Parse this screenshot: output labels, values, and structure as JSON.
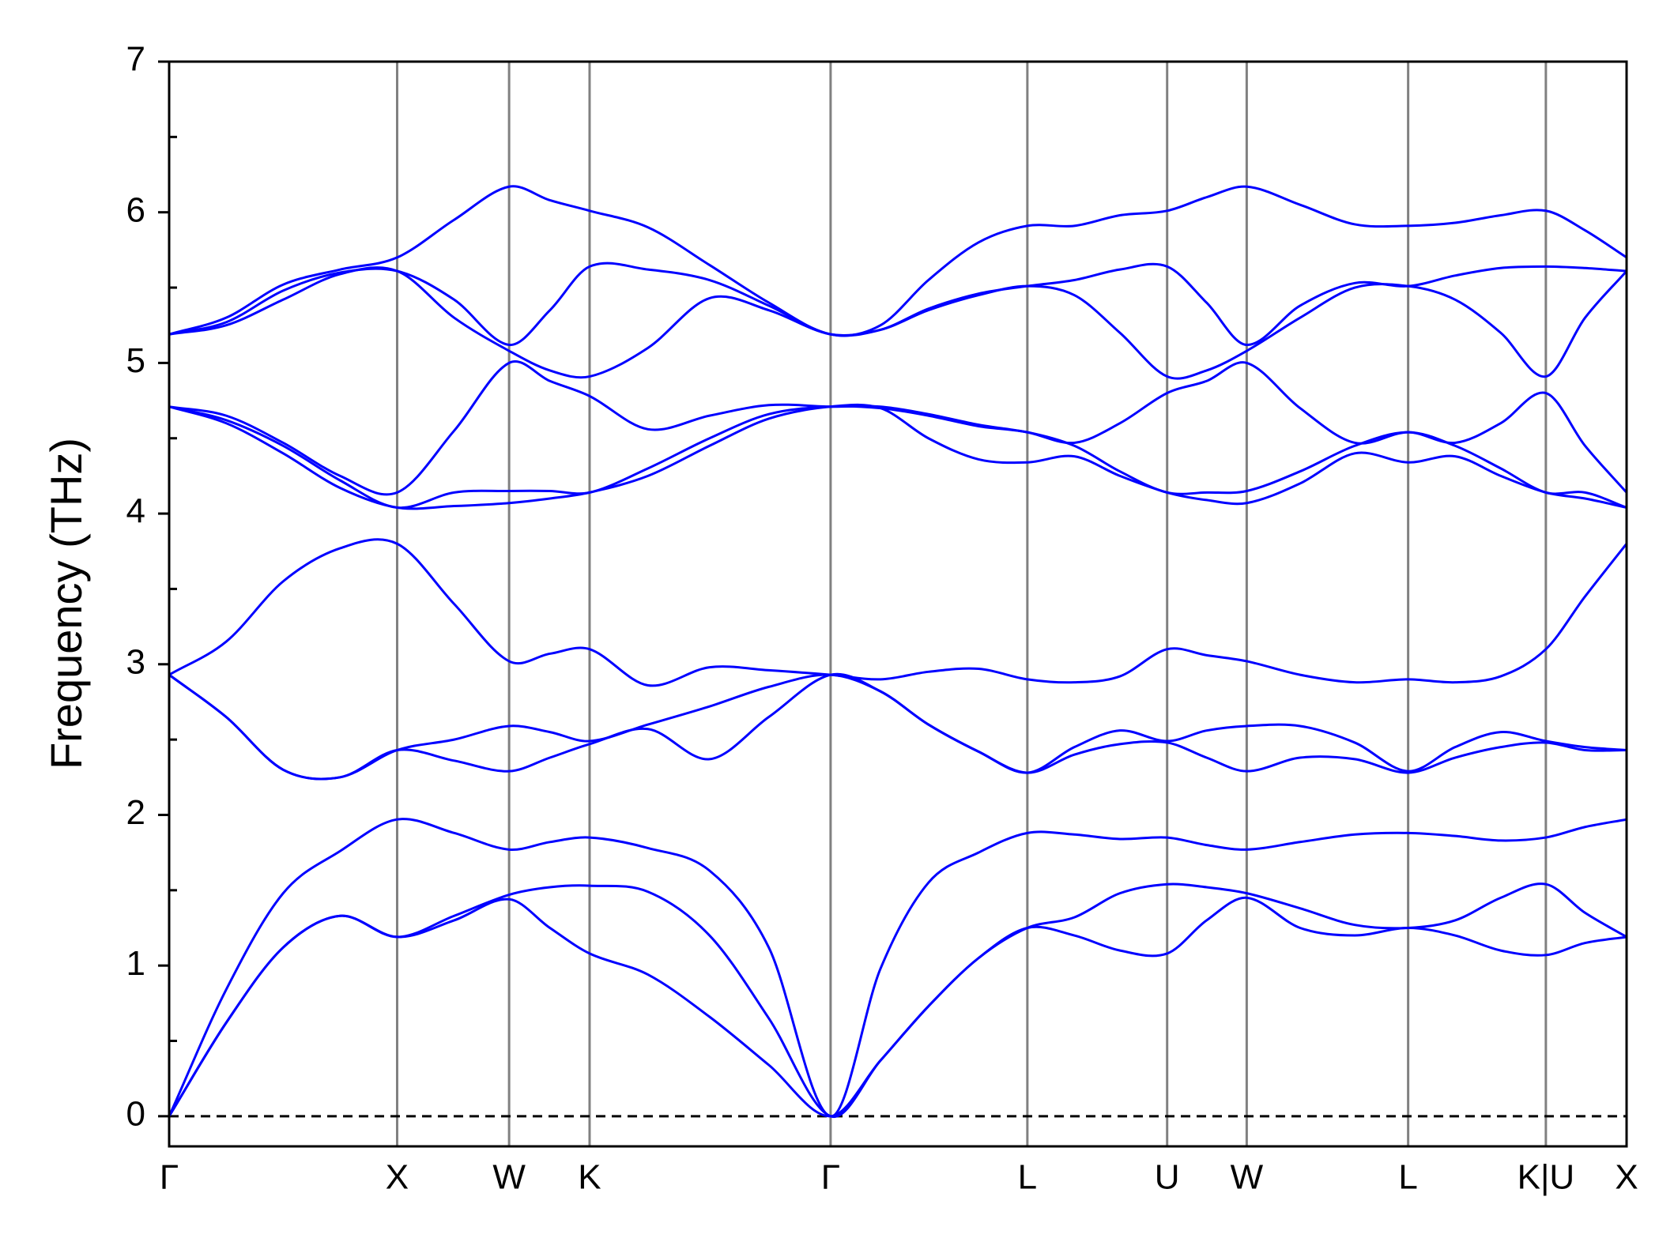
{
  "chart_data": {
    "type": "line",
    "y_label": "Frequency (THz)",
    "xlim": [
      0,
      6.392
    ],
    "ylim": [
      -0.2,
      7
    ],
    "xticks": [
      {
        "value": 0,
        "label": "Γ"
      },
      {
        "value": 1.0,
        "label": "X"
      },
      {
        "value": 1.491,
        "label": "W"
      },
      {
        "value": 1.844,
        "label": "K"
      },
      {
        "value": 2.901,
        "label": "Γ"
      },
      {
        "value": 3.764,
        "label": "L"
      },
      {
        "value": 4.377,
        "label": "U"
      },
      {
        "value": 4.726,
        "label": "W"
      },
      {
        "value": 5.434,
        "label": "L"
      },
      {
        "value": 6.038,
        "label": "K|U"
      },
      {
        "value": 6.392,
        "label": "X"
      }
    ],
    "yticks": [
      0,
      1,
      2,
      3,
      4,
      5,
      6,
      7
    ],
    "yminorticks": [
      0.5,
      1.5,
      2.5,
      3.5,
      4.5,
      5.5,
      6.5
    ],
    "vlines_at_xticks": true,
    "vline_color": "#808080",
    "hlines": [
      0
    ],
    "x": [
      0,
      0.25,
      0.5,
      0.75,
      1.0,
      1.25,
      1.491,
      1.67,
      1.844,
      2.1,
      2.37,
      2.63,
      2.901,
      3.12,
      3.33,
      3.55,
      3.764,
      3.97,
      4.17,
      4.377,
      4.55,
      4.726,
      4.96,
      5.2,
      5.434,
      5.64,
      5.84,
      6.038,
      6.21,
      6.392
    ],
    "series": [
      {
        "color": "#0000ff",
        "values": [
          0,
          0.62,
          1.12,
          1.33,
          1.19,
          1.3,
          1.44,
          1.25,
          1.08,
          0.94,
          0.66,
          0.34,
          0,
          0.37,
          0.73,
          1.05,
          1.25,
          1.2,
          1.1,
          1.08,
          1.3,
          1.45,
          1.25,
          1.2,
          1.25,
          1.2,
          1.1,
          1.07,
          1.15,
          1.19
        ]
      },
      {
        "color": "#0000ff",
        "values": [
          0,
          0.62,
          1.12,
          1.33,
          1.19,
          1.33,
          1.47,
          1.52,
          1.53,
          1.49,
          1.2,
          0.65,
          0,
          0.37,
          0.73,
          1.05,
          1.25,
          1.32,
          1.48,
          1.54,
          1.52,
          1.48,
          1.38,
          1.27,
          1.25,
          1.3,
          1.45,
          1.54,
          1.35,
          1.19
        ]
      },
      {
        "color": "#0000ff",
        "values": [
          0,
          0.84,
          1.48,
          1.76,
          1.97,
          1.88,
          1.77,
          1.82,
          1.85,
          1.78,
          1.63,
          1.12,
          0,
          0.98,
          1.55,
          1.75,
          1.88,
          1.87,
          1.84,
          1.85,
          1.8,
          1.77,
          1.82,
          1.87,
          1.88,
          1.86,
          1.83,
          1.85,
          1.92,
          1.97
        ]
      },
      {
        "color": "#0000ff",
        "values": [
          2.93,
          2.65,
          2.3,
          2.25,
          2.43,
          2.36,
          2.29,
          2.38,
          2.47,
          2.57,
          2.37,
          2.65,
          2.93,
          2.82,
          2.6,
          2.42,
          2.28,
          2.4,
          2.47,
          2.48,
          2.38,
          2.29,
          2.38,
          2.37,
          2.28,
          2.38,
          2.45,
          2.48,
          2.43,
          2.43
        ]
      },
      {
        "color": "#0000ff",
        "values": [
          2.93,
          2.65,
          2.3,
          2.25,
          2.43,
          2.5,
          2.59,
          2.55,
          2.49,
          2.6,
          2.72,
          2.85,
          2.93,
          2.82,
          2.6,
          2.42,
          2.28,
          2.45,
          2.56,
          2.49,
          2.56,
          2.59,
          2.59,
          2.48,
          2.29,
          2.45,
          2.55,
          2.49,
          2.45,
          2.43
        ]
      },
      {
        "color": "#0000ff",
        "values": [
          2.93,
          3.15,
          3.55,
          3.77,
          3.8,
          3.4,
          3.02,
          3.07,
          3.1,
          2.86,
          2.98,
          2.96,
          2.93,
          2.9,
          2.95,
          2.97,
          2.9,
          2.88,
          2.92,
          3.1,
          3.06,
          3.02,
          2.93,
          2.88,
          2.9,
          2.88,
          2.92,
          3.1,
          3.45,
          3.8
        ]
      },
      {
        "color": "#0000ff",
        "values": [
          4.71,
          4.6,
          4.4,
          4.17,
          4.04,
          4.05,
          4.07,
          4.1,
          4.14,
          4.25,
          4.45,
          4.63,
          4.71,
          4.7,
          4.5,
          4.36,
          4.34,
          4.38,
          4.25,
          4.14,
          4.09,
          4.07,
          4.2,
          4.4,
          4.34,
          4.38,
          4.25,
          4.14,
          4.1,
          4.04
        ]
      },
      {
        "color": "#0000ff",
        "values": [
          4.71,
          4.62,
          4.45,
          4.22,
          4.04,
          4.14,
          4.15,
          4.15,
          4.14,
          4.3,
          4.5,
          4.66,
          4.71,
          4.7,
          4.65,
          4.58,
          4.54,
          4.45,
          4.28,
          4.14,
          4.14,
          4.15,
          4.28,
          4.45,
          4.54,
          4.45,
          4.3,
          4.14,
          4.14,
          4.04
        ]
      },
      {
        "color": "#0000ff",
        "values": [
          4.71,
          4.65,
          4.47,
          4.25,
          4.14,
          4.55,
          5.0,
          4.88,
          4.78,
          4.56,
          4.65,
          4.72,
          4.71,
          4.71,
          4.66,
          4.59,
          4.54,
          4.47,
          4.6,
          4.8,
          4.88,
          5.0,
          4.7,
          4.47,
          4.54,
          4.47,
          4.6,
          4.8,
          4.45,
          4.14
        ]
      },
      {
        "color": "#0000ff",
        "values": [
          5.19,
          5.25,
          5.42,
          5.59,
          5.61,
          5.3,
          5.08,
          4.95,
          4.91,
          5.1,
          5.43,
          5.35,
          5.19,
          5.22,
          5.35,
          5.45,
          5.51,
          5.45,
          5.2,
          4.91,
          4.95,
          5.08,
          5.3,
          5.5,
          5.51,
          5.42,
          5.2,
          4.91,
          5.3,
          5.61
        ]
      },
      {
        "color": "#0000ff",
        "values": [
          5.19,
          5.27,
          5.48,
          5.6,
          5.61,
          5.42,
          5.12,
          5.35,
          5.64,
          5.62,
          5.55,
          5.38,
          5.19,
          5.22,
          5.36,
          5.46,
          5.51,
          5.55,
          5.62,
          5.64,
          5.4,
          5.12,
          5.38,
          5.53,
          5.51,
          5.58,
          5.63,
          5.64,
          5.63,
          5.61
        ]
      },
      {
        "color": "#0000ff",
        "values": [
          5.19,
          5.3,
          5.52,
          5.62,
          5.7,
          5.95,
          6.17,
          6.08,
          6.01,
          5.9,
          5.65,
          5.4,
          5.19,
          5.25,
          5.55,
          5.8,
          5.91,
          5.91,
          5.98,
          6.01,
          6.1,
          6.17,
          6.05,
          5.92,
          5.91,
          5.93,
          5.98,
          6.01,
          5.88,
          5.7
        ]
      }
    ]
  }
}
